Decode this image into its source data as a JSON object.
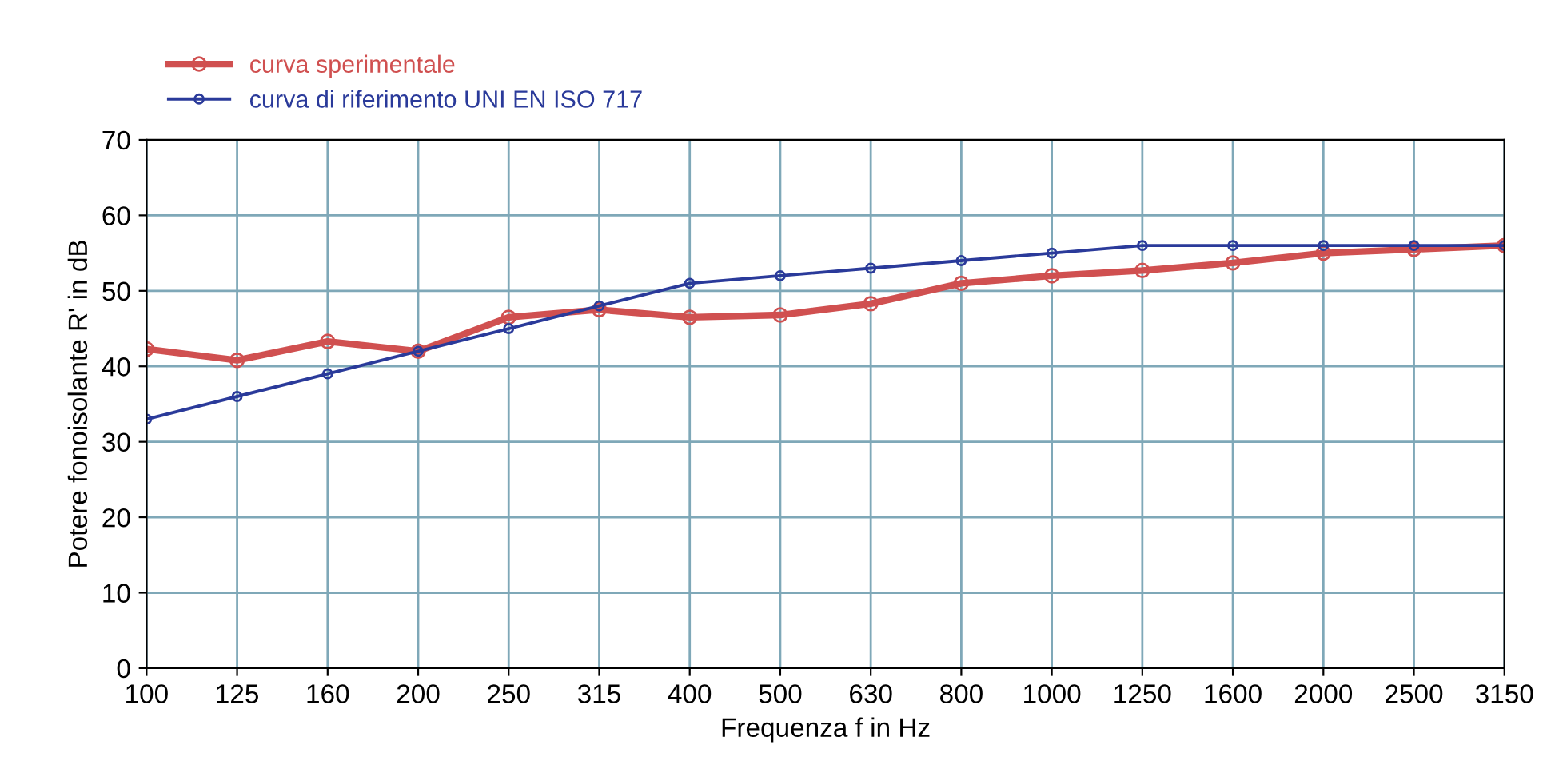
{
  "chart_data": {
    "type": "line",
    "xlabel": "Frequenza f in Hz",
    "ylabel": "Potere fonoisolante R' in dB",
    "categories": [
      "100",
      "125",
      "160",
      "200",
      "250",
      "315",
      "400",
      "500",
      "630",
      "800",
      "1000",
      "1250",
      "1600",
      "2000",
      "2500",
      "3150"
    ],
    "series": [
      {
        "name": "curva sperimentale",
        "color": "#d05050",
        "values": [
          42.3,
          40.8,
          43.3,
          42.0,
          46.5,
          47.5,
          46.5,
          46.8,
          48.3,
          51,
          52,
          52.7,
          53.7,
          55,
          55.5,
          56
        ]
      },
      {
        "name": "curva di riferimento UNI EN ISO 717",
        "color": "#2a3a9a",
        "values": [
          33,
          36,
          39,
          42,
          45,
          48,
          51,
          52,
          53,
          54,
          55,
          56,
          56,
          56,
          56,
          56
        ]
      }
    ],
    "ylim": [
      0,
      70
    ],
    "yticks": [
      0,
      10,
      20,
      30,
      40,
      50,
      60,
      70
    ],
    "grid": true,
    "legend": "top left",
    "marker": "circle",
    "line_style": "solid"
  }
}
